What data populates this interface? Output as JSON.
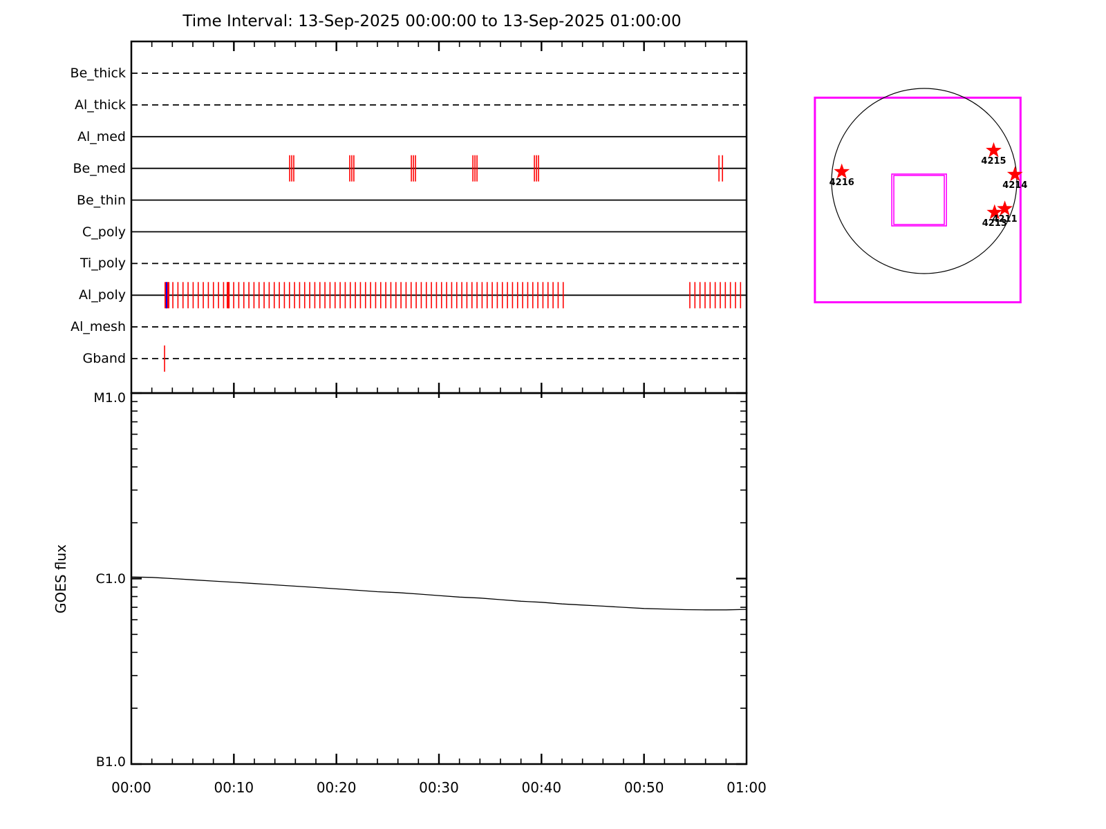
{
  "title": "Time Interval: 13-Sep-2025 00:00:00 to 13-Sep-2025 01:00:00",
  "colors": {
    "axis": "#000000",
    "exposure_tick": "#ff0000",
    "special_mark": "#0000ff",
    "fov_box": "#ff00ff",
    "star": "#ff0000",
    "goes_curve": "#000000"
  },
  "chart_data": [
    {
      "id": "filter_exposure_timeline",
      "type": "scatter",
      "title": "",
      "x_unit": "minutes after 13-Sep-2025 00:00:00",
      "xlim": [
        0,
        60
      ],
      "minor_tick_step_min": 2,
      "major_tick_step_min": 10,
      "rows": [
        {
          "label": "Be_thick",
          "line_style": "dashed",
          "event_times_min": []
        },
        {
          "label": "Al_thick",
          "line_style": "dashed",
          "event_times_min": []
        },
        {
          "label": "Al_med",
          "line_style": "solid",
          "event_times_min": []
        },
        {
          "label": "Be_med",
          "line_style": "solid",
          "event_times_min": [
            15.44,
            15.64,
            15.84,
            21.3,
            21.5,
            21.7,
            27.31,
            27.51,
            27.71,
            33.31,
            33.51,
            33.71,
            39.31,
            39.51,
            39.71,
            57.31,
            57.65
          ]
        },
        {
          "label": "Be_thin",
          "line_style": "solid",
          "event_times_min": []
        },
        {
          "label": "C_poly",
          "line_style": "solid",
          "event_times_min": []
        },
        {
          "label": "Ti_poly",
          "line_style": "dashed",
          "event_times_min": []
        },
        {
          "label": "Al_poly",
          "line_style": "solid",
          "event_times_min": [],
          "event_runs_min": [
            {
              "start": 4.05,
              "end": 42.3,
              "step": 0.4944
            },
            {
              "start": 54.47,
              "end": 59.87,
              "step": 0.4944
            }
          ],
          "special_marks_min": [
            {
              "color": "#ff0000",
              "start": 3.24,
              "end": 3.71
            },
            {
              "color": "#0000ff",
              "start": 3.37,
              "end": 3.5
            },
            {
              "color": "#ff0000",
              "start": 9.3,
              "end": 9.58
            }
          ]
        },
        {
          "label": "Al_mesh",
          "line_style": "dashed",
          "event_times_min": []
        },
        {
          "label": "Gband",
          "line_style": "dashed",
          "event_times_min": [
            3.24
          ]
        }
      ]
    },
    {
      "id": "goes_flux",
      "type": "line",
      "ylabel": "GOES flux",
      "y_scale": "log",
      "ylim_wm2": [
        1e-07,
        1e-05
      ],
      "y_ticks": [
        {
          "label": "M1.0",
          "flux_wm2": 1e-05
        },
        {
          "label": "C1.0",
          "flux_wm2": 1e-06
        },
        {
          "label": "B1.0",
          "flux_wm2": 1e-07
        }
      ],
      "x_tick_labels": [
        "00:00",
        "00:10",
        "00:20",
        "00:30",
        "00:40",
        "00:50",
        "01:00"
      ],
      "x_tick_minutes": [
        0,
        10,
        20,
        30,
        40,
        50,
        60
      ],
      "x_minutes": [
        0,
        2,
        4,
        6,
        8,
        10,
        12,
        14,
        16,
        18,
        20,
        22,
        24,
        26,
        28,
        30,
        32,
        34,
        36,
        38,
        40,
        42,
        44,
        46,
        48,
        50,
        52,
        54,
        56,
        58,
        60
      ],
      "flux_wm2": [
        1.02e-06,
        1.015e-06,
        1e-06,
        9.85e-07,
        9.7e-07,
        9.55e-07,
        9.4e-07,
        9.25e-07,
        9.1e-07,
        8.95e-07,
        8.8e-07,
        8.65e-07,
        8.5e-07,
        8.4e-07,
        8.25e-07,
        8.1e-07,
        7.95e-07,
        7.85e-07,
        7.7e-07,
        7.55e-07,
        7.45e-07,
        7.3e-07,
        7.2e-07,
        7.1e-07,
        7e-07,
        6.9e-07,
        6.85e-07,
        6.8e-07,
        6.78e-07,
        6.78e-07,
        6.82e-07
      ]
    },
    {
      "id": "pointing_map",
      "type": "scatter",
      "units": "solar radii from disk center, y positive southward",
      "disk_radius_rsun": 1.0,
      "outer_box_rsun": {
        "x": -1.18,
        "y": -0.9,
        "w": 2.22,
        "h": 2.21
      },
      "inner_boxes_rsun": [
        {
          "x": -0.35,
          "y": -0.075,
          "w": 0.59,
          "h": 0.56
        },
        {
          "x": -0.328,
          "y": -0.06,
          "w": 0.545,
          "h": 0.53
        }
      ],
      "stars": [
        {
          "label": "4215",
          "x_rsun": 0.75,
          "y_rsun": -0.33
        },
        {
          "label": "4214",
          "x_rsun": 0.98,
          "y_rsun": -0.07
        },
        {
          "label": "4216",
          "x_rsun": -0.89,
          "y_rsun": -0.1
        },
        {
          "label": "4211",
          "x_rsun": 0.87,
          "y_rsun": 0.3
        },
        {
          "label": "4213",
          "x_rsun": 0.76,
          "y_rsun": 0.34
        }
      ]
    }
  ]
}
